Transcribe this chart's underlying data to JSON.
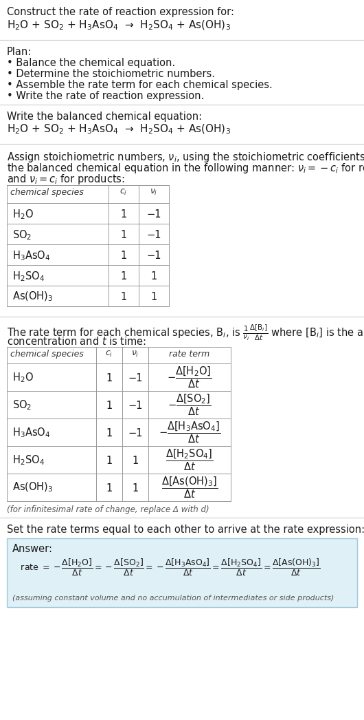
{
  "bg_color": "#ffffff",
  "text_color": "#1a1a1a",
  "gray_text": "#555555",
  "answer_bg": "#dff0f7",
  "answer_border": "#a0c8dc",
  "title_line1": "Construct the rate of reaction expression for:",
  "reaction_equation": "H$_2$O + SO$_2$ + H$_3$AsO$_4$  →  H$_2$SO$_4$ + As(OH)$_3$",
  "plan_header": "Plan:",
  "plan_items": [
    "• Balance the chemical equation.",
    "• Determine the stoichiometric numbers.",
    "• Assemble the rate term for each chemical species.",
    "• Write the rate of reaction expression."
  ],
  "section2_header": "Write the balanced chemical equation:",
  "section2_eq": "H$_2$O + SO$_2$ + H$_3$AsO$_4$  →  H$_2$SO$_4$ + As(OH)$_3$",
  "table1_headers": [
    "chemical species",
    "$c_i$",
    "$\\nu_i$"
  ],
  "table1_rows": [
    [
      "H$_2$O",
      "1",
      "−1"
    ],
    [
      "SO$_2$",
      "1",
      "−1"
    ],
    [
      "H$_3$AsO$_4$",
      "1",
      "−1"
    ],
    [
      "H$_2$SO$_4$",
      "1",
      "1"
    ],
    [
      "As(OH)$_3$",
      "1",
      "1"
    ]
  ],
  "table2_headers": [
    "chemical species",
    "$c_i$",
    "$\\nu_i$",
    "rate term"
  ],
  "table2_rows": [
    [
      "H$_2$O",
      "1",
      "−1",
      "$-\\dfrac{\\Delta[\\mathrm{H_2O}]}{\\Delta t}$"
    ],
    [
      "SO$_2$",
      "1",
      "−1",
      "$-\\dfrac{\\Delta[\\mathrm{SO_2}]}{\\Delta t}$"
    ],
    [
      "H$_3$AsO$_4$",
      "1",
      "−1",
      "$-\\dfrac{\\Delta[\\mathrm{H_3AsO_4}]}{\\Delta t}$"
    ],
    [
      "H$_2$SO$_4$",
      "1",
      "1",
      "$\\dfrac{\\Delta[\\mathrm{H_2SO_4}]}{\\Delta t}$"
    ],
    [
      "As(OH)$_3$",
      "1",
      "1",
      "$\\dfrac{\\Delta[\\mathrm{As(OH)_3}]}{\\Delta t}$"
    ]
  ],
  "infinitesimal_note": "(for infinitesimal rate of change, replace Δ with d)",
  "section5_header": "Set the rate terms equal to each other to arrive at the rate expression:",
  "answer_label": "Answer:",
  "rate_expression": "   rate $= -\\dfrac{\\Delta[\\mathrm{H_2O}]}{\\Delta t} = -\\dfrac{\\Delta[\\mathrm{SO_2}]}{\\Delta t} = -\\dfrac{\\Delta[\\mathrm{H_3AsO_4}]}{\\Delta t} = \\dfrac{\\Delta[\\mathrm{H_2SO_4}]}{\\Delta t} = \\dfrac{\\Delta[\\mathrm{As(OH)_3}]}{\\Delta t}$",
  "assumption_note": "(assuming constant volume and no accumulation of intermediates or side products)"
}
